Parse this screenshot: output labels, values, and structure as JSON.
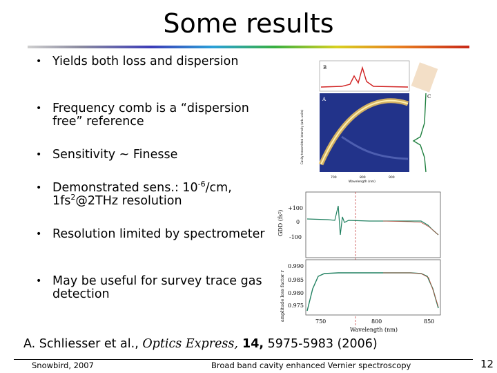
{
  "slide": {
    "title": "Some results",
    "bullets": [
      "Yields both loss and dispersion",
      "Frequency comb is a “dispersion free” reference",
      "Sensitivity ~ Finesse",
      "Resolution limited by spectrometer",
      "May be useful for survey trace gas detection"
    ],
    "sens": {
      "pre": "Demonstrated sens.: 10",
      "exp1": "-6",
      "mid": "/cm, 1fs",
      "exp2": "2",
      "post": "@2THz resolution"
    },
    "citation": {
      "authors": "A. Schliesser et al., ",
      "journal": "Optics Express,",
      "volume": " 14,",
      "pages": " 5975-5983 (2006)"
    },
    "footer": {
      "left": "Snowbird, 2007",
      "center": "Broad band cavity enhanced Vernier spectroscopy",
      "page": "12"
    }
  },
  "figure": {
    "panel_b_label": "B",
    "panel_a_label": "A",
    "panel_c_label": "C",
    "top_ylabel": "Cavity transmitted intensity (arb. units)",
    "top_xticks": [
      "700",
      "800",
      "900"
    ],
    "top_xlabel": "Wavelength (nm)",
    "gdd_ylabel": "GDD (fs²)",
    "gdd_ticks": [
      "+100",
      "0",
      "-100"
    ],
    "amp_ylabel": "amplitude loss factor r",
    "amp_ticks": [
      "0.990",
      "0.985",
      "0.980",
      "0.975"
    ],
    "bottom_xticks": [
      "750",
      "800",
      "850"
    ],
    "bottom_xlabel": "Wavelength (nm)"
  }
}
